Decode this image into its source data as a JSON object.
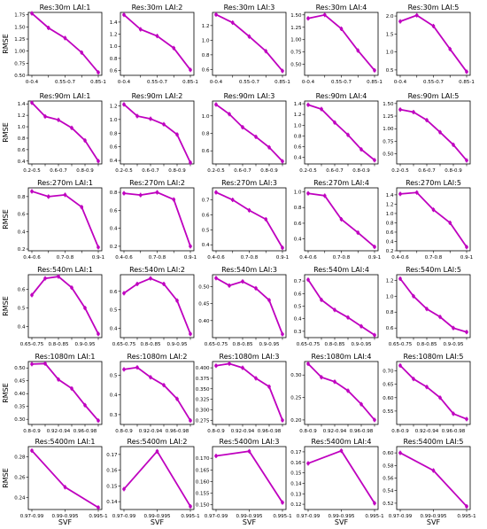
{
  "figure": {
    "ylabel": "RMSE",
    "xlabel": "SVF",
    "series_color": "#bf00bf"
  },
  "chart_data": [
    {
      "type": "line",
      "title": "Res:30m  LAI:1",
      "x_tick_labels": [
        "0-0.4",
        "0.55-0.7",
        "0.85-1"
      ],
      "y_ticks": [
        "0.50",
        "0.75",
        "1.00",
        "1.25",
        "1.50",
        "1.75"
      ],
      "ylim": [
        0.5,
        1.8
      ],
      "values": [
        1.78,
        1.48,
        1.27,
        0.97,
        0.56
      ]
    },
    {
      "type": "line",
      "title": "Res:30m  LAI:2",
      "x_tick_labels": [
        "0-0.4",
        "0.55-0.7",
        "0.85-1"
      ],
      "y_ticks": [
        "0.6",
        "0.8",
        "1.0",
        "1.2",
        "1.4"
      ],
      "ylim": [
        0.52,
        1.56
      ],
      "values": [
        1.52,
        1.28,
        1.17,
        0.97,
        0.61
      ]
    },
    {
      "type": "line",
      "title": "Res:30m  LAI:3",
      "x_tick_labels": [
        "0-0.4",
        "0.55-0.7",
        "0.85-1"
      ],
      "y_ticks": [
        "0.6",
        "0.8",
        "1.0",
        "1.2"
      ],
      "ylim": [
        0.52,
        1.38
      ],
      "values": [
        1.35,
        1.24,
        1.05,
        0.85,
        0.58
      ]
    },
    {
      "type": "line",
      "title": "Res:30m  LAI:4",
      "x_tick_labels": [
        "0-0.4",
        "0.55-0.7",
        "0.85-1"
      ],
      "y_ticks": [
        "0.25",
        "0.50",
        "0.75",
        "1.00",
        "1.25",
        "1.50"
      ],
      "ylim": [
        0.28,
        1.55
      ],
      "values": [
        1.43,
        1.5,
        1.22,
        0.78,
        0.38
      ]
    },
    {
      "type": "line",
      "title": "Res:30m  LAI:5",
      "x_tick_labels": [
        "0-0.4",
        "0.55-0.7",
        "0.85-1"
      ],
      "y_ticks": [
        "0.5",
        "1.0",
        "1.5",
        "2.0"
      ],
      "ylim": [
        0.35,
        2.1
      ],
      "values": [
        1.85,
        2.02,
        1.72,
        1.08,
        0.45
      ]
    },
    {
      "type": "line",
      "title": "Res:90m  LAI:1",
      "x_tick_labels": [
        "0.2-0.5",
        "0.6-0.7",
        "0.8-0.9"
      ],
      "y_ticks": [
        "0.4",
        "0.6",
        "0.8",
        "1.0",
        "1.2",
        "1.4"
      ],
      "ylim": [
        0.35,
        1.45
      ],
      "values": [
        1.42,
        1.18,
        1.12,
        0.98,
        0.76,
        0.4
      ]
    },
    {
      "type": "line",
      "title": "Res:90m  LAI:2",
      "x_tick_labels": [
        "0.2-0.5",
        "0.6-0.7",
        "0.8-0.9"
      ],
      "y_ticks": [
        "0.4",
        "0.6",
        "0.8",
        "1.0",
        "1.2"
      ],
      "ylim": [
        0.35,
        1.27
      ],
      "values": [
        1.22,
        1.05,
        1.01,
        0.93,
        0.78,
        0.37
      ]
    },
    {
      "type": "line",
      "title": "Res:90m  LAI:3",
      "x_tick_labels": [
        "0.2-0.5",
        "0.6-0.7",
        "0.8-0.9"
      ],
      "y_ticks": [
        "0.6",
        "0.8",
        "1.0"
      ],
      "ylim": [
        0.45,
        1.17
      ],
      "values": [
        1.13,
        1.02,
        0.87,
        0.76,
        0.64,
        0.48
      ]
    },
    {
      "type": "line",
      "title": "Res:90m  LAI:4",
      "x_tick_labels": [
        "0.2-0.5",
        "0.6-0.7",
        "0.8-0.9"
      ],
      "y_ticks": [
        "0.4",
        "0.6",
        "0.8",
        "1.0",
        "1.2",
        "1.4"
      ],
      "ylim": [
        0.28,
        1.45
      ],
      "values": [
        1.38,
        1.3,
        1.05,
        0.82,
        0.55,
        0.35
      ]
    },
    {
      "type": "line",
      "title": "Res:90m  LAI:5",
      "x_tick_labels": [
        "0.2-0.5",
        "0.6-0.7",
        "0.8-0.9"
      ],
      "y_ticks": [
        "0.25",
        "0.50",
        "0.75",
        "1.00",
        "1.25",
        "1.50"
      ],
      "ylim": [
        0.3,
        1.55
      ],
      "values": [
        1.38,
        1.33,
        1.17,
        0.93,
        0.68,
        0.37
      ]
    },
    {
      "type": "line",
      "title": "Res:270m  LAI:1",
      "x_tick_labels": [
        "0.4-0.6",
        "0.7-0.8",
        "0.9-1"
      ],
      "y_ticks": [
        "0.2",
        "0.4",
        "0.6",
        "0.8"
      ],
      "ylim": [
        0.18,
        0.9
      ],
      "values": [
        0.86,
        0.8,
        0.82,
        0.68,
        0.22
      ]
    },
    {
      "type": "line",
      "title": "Res:270m  LAI:2",
      "x_tick_labels": [
        "0.4-0.6",
        "0.7-0.8",
        "0.9-1"
      ],
      "y_ticks": [
        "0.2",
        "0.4",
        "0.6",
        "0.8"
      ],
      "ylim": [
        0.15,
        0.85
      ],
      "values": [
        0.79,
        0.77,
        0.8,
        0.72,
        0.2
      ]
    },
    {
      "type": "line",
      "title": "Res:270m  LAI:3",
      "x_tick_labels": [
        "0.4-0.6",
        "0.7-0.8",
        "0.9-1"
      ],
      "y_ticks": [
        "0.4",
        "0.5",
        "0.6",
        "0.7"
      ],
      "ylim": [
        0.36,
        0.78
      ],
      "values": [
        0.75,
        0.7,
        0.63,
        0.57,
        0.38
      ]
    },
    {
      "type": "line",
      "title": "Res:270m  LAI:4",
      "x_tick_labels": [
        "0.4-0.6",
        "0.7-0.8",
        "0.9-1"
      ],
      "y_ticks": [
        "0.4",
        "0.6",
        "0.8",
        "1.0"
      ],
      "ylim": [
        0.25,
        1.05
      ],
      "values": [
        0.98,
        0.95,
        0.65,
        0.48,
        0.3
      ]
    },
    {
      "type": "line",
      "title": "Res:270m  LAI:5",
      "x_tick_labels": [
        "0.4-0.6",
        "0.7-0.8",
        "0.9-1"
      ],
      "y_ticks": [
        "0.2",
        "0.4",
        "0.6",
        "0.8",
        "1.0",
        "1.2",
        "1.4"
      ],
      "ylim": [
        0.2,
        1.55
      ],
      "values": [
        1.42,
        1.45,
        1.08,
        0.8,
        0.28
      ]
    },
    {
      "type": "line",
      "title": "Res:540m  LAI:1",
      "x_tick_labels": [
        "0.65-0.75",
        "0.8-0.85",
        "0.9-0.95"
      ],
      "y_ticks": [
        "0.4",
        "0.5",
        "0.6"
      ],
      "ylim": [
        0.34,
        0.68
      ],
      "values": [
        0.57,
        0.66,
        0.67,
        0.61,
        0.5,
        0.36
      ]
    },
    {
      "type": "line",
      "title": "Res:540m  LAI:2",
      "x_tick_labels": [
        "0.65-0.75",
        "0.8-0.85",
        "0.9-0.95"
      ],
      "y_ticks": [
        "0.4",
        "0.5",
        "0.6"
      ],
      "ylim": [
        0.35,
        0.69
      ],
      "values": [
        0.59,
        0.64,
        0.67,
        0.64,
        0.55,
        0.37
      ]
    },
    {
      "type": "line",
      "title": "Res:540m  LAI:3",
      "x_tick_labels": [
        "0.65-0.75",
        "0.8-0.85",
        "0.9-0.95"
      ],
      "y_ticks": [
        "0.40",
        "0.45",
        "0.50"
      ],
      "ylim": [
        0.35,
        0.535
      ],
      "values": [
        0.525,
        0.503,
        0.515,
        0.495,
        0.46,
        0.36
      ]
    },
    {
      "type": "line",
      "title": "Res:540m  LAI:4",
      "x_tick_labels": [
        "0.65-0.75",
        "0.8-0.85",
        "0.9-0.95"
      ],
      "y_ticks": [
        "0.3",
        "0.4",
        "0.5",
        "0.6",
        "0.7"
      ],
      "ylim": [
        0.25,
        0.75
      ],
      "values": [
        0.71,
        0.55,
        0.47,
        0.41,
        0.34,
        0.27
      ]
    },
    {
      "type": "line",
      "title": "Res:540m  LAI:5",
      "x_tick_labels": [
        "0.65-0.75",
        "0.8-0.85",
        "0.9-0.95"
      ],
      "y_ticks": [
        "0.4",
        "0.6",
        "0.8",
        "1.0",
        "1.2"
      ],
      "ylim": [
        0.48,
        1.27
      ],
      "values": [
        1.22,
        1.0,
        0.84,
        0.74,
        0.6,
        0.55
      ]
    },
    {
      "type": "line",
      "title": "Res:1080m  LAI:1",
      "x_tick_labels": [
        "0.8-0.9",
        "0.92-0.94",
        "0.96-0.98"
      ],
      "y_ticks": [
        "0.30",
        "0.35",
        "0.40",
        "0.45",
        "0.50"
      ],
      "ylim": [
        0.28,
        0.525
      ],
      "values": [
        0.515,
        0.517,
        0.455,
        0.42,
        0.355,
        0.295
      ]
    },
    {
      "type": "line",
      "title": "Res:1080m  LAI:2",
      "x_tick_labels": [
        "0.8-0.9",
        "0.92-0.94",
        "0.96-0.98"
      ],
      "y_ticks": [
        "0.3",
        "0.4",
        "0.5"
      ],
      "ylim": [
        0.25,
        0.57
      ],
      "values": [
        0.53,
        0.54,
        0.49,
        0.45,
        0.38,
        0.27
      ]
    },
    {
      "type": "line",
      "title": "Res:1080m  LAI:3",
      "x_tick_labels": [
        "0.8-0.9",
        "0.92-0.94",
        "0.96-0.98"
      ],
      "y_ticks": [
        "0.275",
        "0.300",
        "0.325",
        "0.350",
        "0.375",
        "0.400"
      ],
      "ylim": [
        0.265,
        0.415
      ],
      "values": [
        0.405,
        0.41,
        0.4,
        0.375,
        0.355,
        0.275
      ]
    },
    {
      "type": "line",
      "title": "Res:1080m  LAI:4",
      "x_tick_labels": [
        "0.8-0.9",
        "0.92-0.94",
        "0.96-0.98"
      ],
      "y_ticks": [
        "0.20",
        "0.25",
        "0.30"
      ],
      "ylim": [
        0.19,
        0.33
      ],
      "values": [
        0.325,
        0.295,
        0.285,
        0.265,
        0.235,
        0.2
      ]
    },
    {
      "type": "line",
      "title": "Res:1080m  LAI:5",
      "x_tick_labels": [
        "0.8-0.9",
        "0.92-0.94",
        "0.96-0.98"
      ],
      "y_ticks": [
        "0.55",
        "0.60",
        "0.65",
        "0.70"
      ],
      "ylim": [
        0.5,
        0.735
      ],
      "values": [
        0.72,
        0.67,
        0.64,
        0.6,
        0.54,
        0.52
      ]
    },
    {
      "type": "line",
      "title": "Res:5400m  LAI:1",
      "x_tick_labels": [
        "0.97-0.99",
        "0.99-0.995",
        "0.995-1"
      ],
      "y_ticks": [
        "0.24",
        "0.26",
        "0.28"
      ],
      "ylim": [
        0.228,
        0.29
      ],
      "values": [
        0.286,
        0.25,
        0.23
      ]
    },
    {
      "type": "line",
      "title": "Res:5400m  LAI:2",
      "x_tick_labels": [
        "0.97-0.99",
        "0.99-0.995",
        "0.995-1"
      ],
      "y_ticks": [
        "0.14",
        "0.15",
        "0.16",
        "0.17"
      ],
      "ylim": [
        0.135,
        0.175
      ],
      "values": [
        0.148,
        0.172,
        0.137
      ]
    },
    {
      "type": "line",
      "title": "Res:5400m  LAI:3",
      "x_tick_labels": [
        "0.97-0.99",
        "0.99-0.995",
        "0.995-1"
      ],
      "y_ticks": [
        "0.150",
        "0.155",
        "0.160",
        "0.165",
        "0.170"
      ],
      "ylim": [
        0.148,
        0.175
      ],
      "values": [
        0.171,
        0.173,
        0.151
      ]
    },
    {
      "type": "line",
      "title": "Res:5400m  LAI:4",
      "x_tick_labels": [
        "0.97-0.99",
        "0.99-0.995",
        "0.995-1"
      ],
      "y_ticks": [
        "0.12",
        "0.13",
        "0.14",
        "0.15",
        "0.16",
        "0.17"
      ],
      "ylim": [
        0.115,
        0.175
      ],
      "values": [
        0.159,
        0.171,
        0.121
      ]
    },
    {
      "type": "line",
      "title": "Res:5400m  LAI:5",
      "x_tick_labels": [
        "0.97-0.99",
        "0.99-0.995",
        "0.995-1"
      ],
      "y_ticks": [
        "0.52",
        "0.54",
        "0.56",
        "0.58",
        "0.60"
      ],
      "ylim": [
        0.51,
        0.61
      ],
      "values": [
        0.6,
        0.572,
        0.515
      ]
    }
  ]
}
